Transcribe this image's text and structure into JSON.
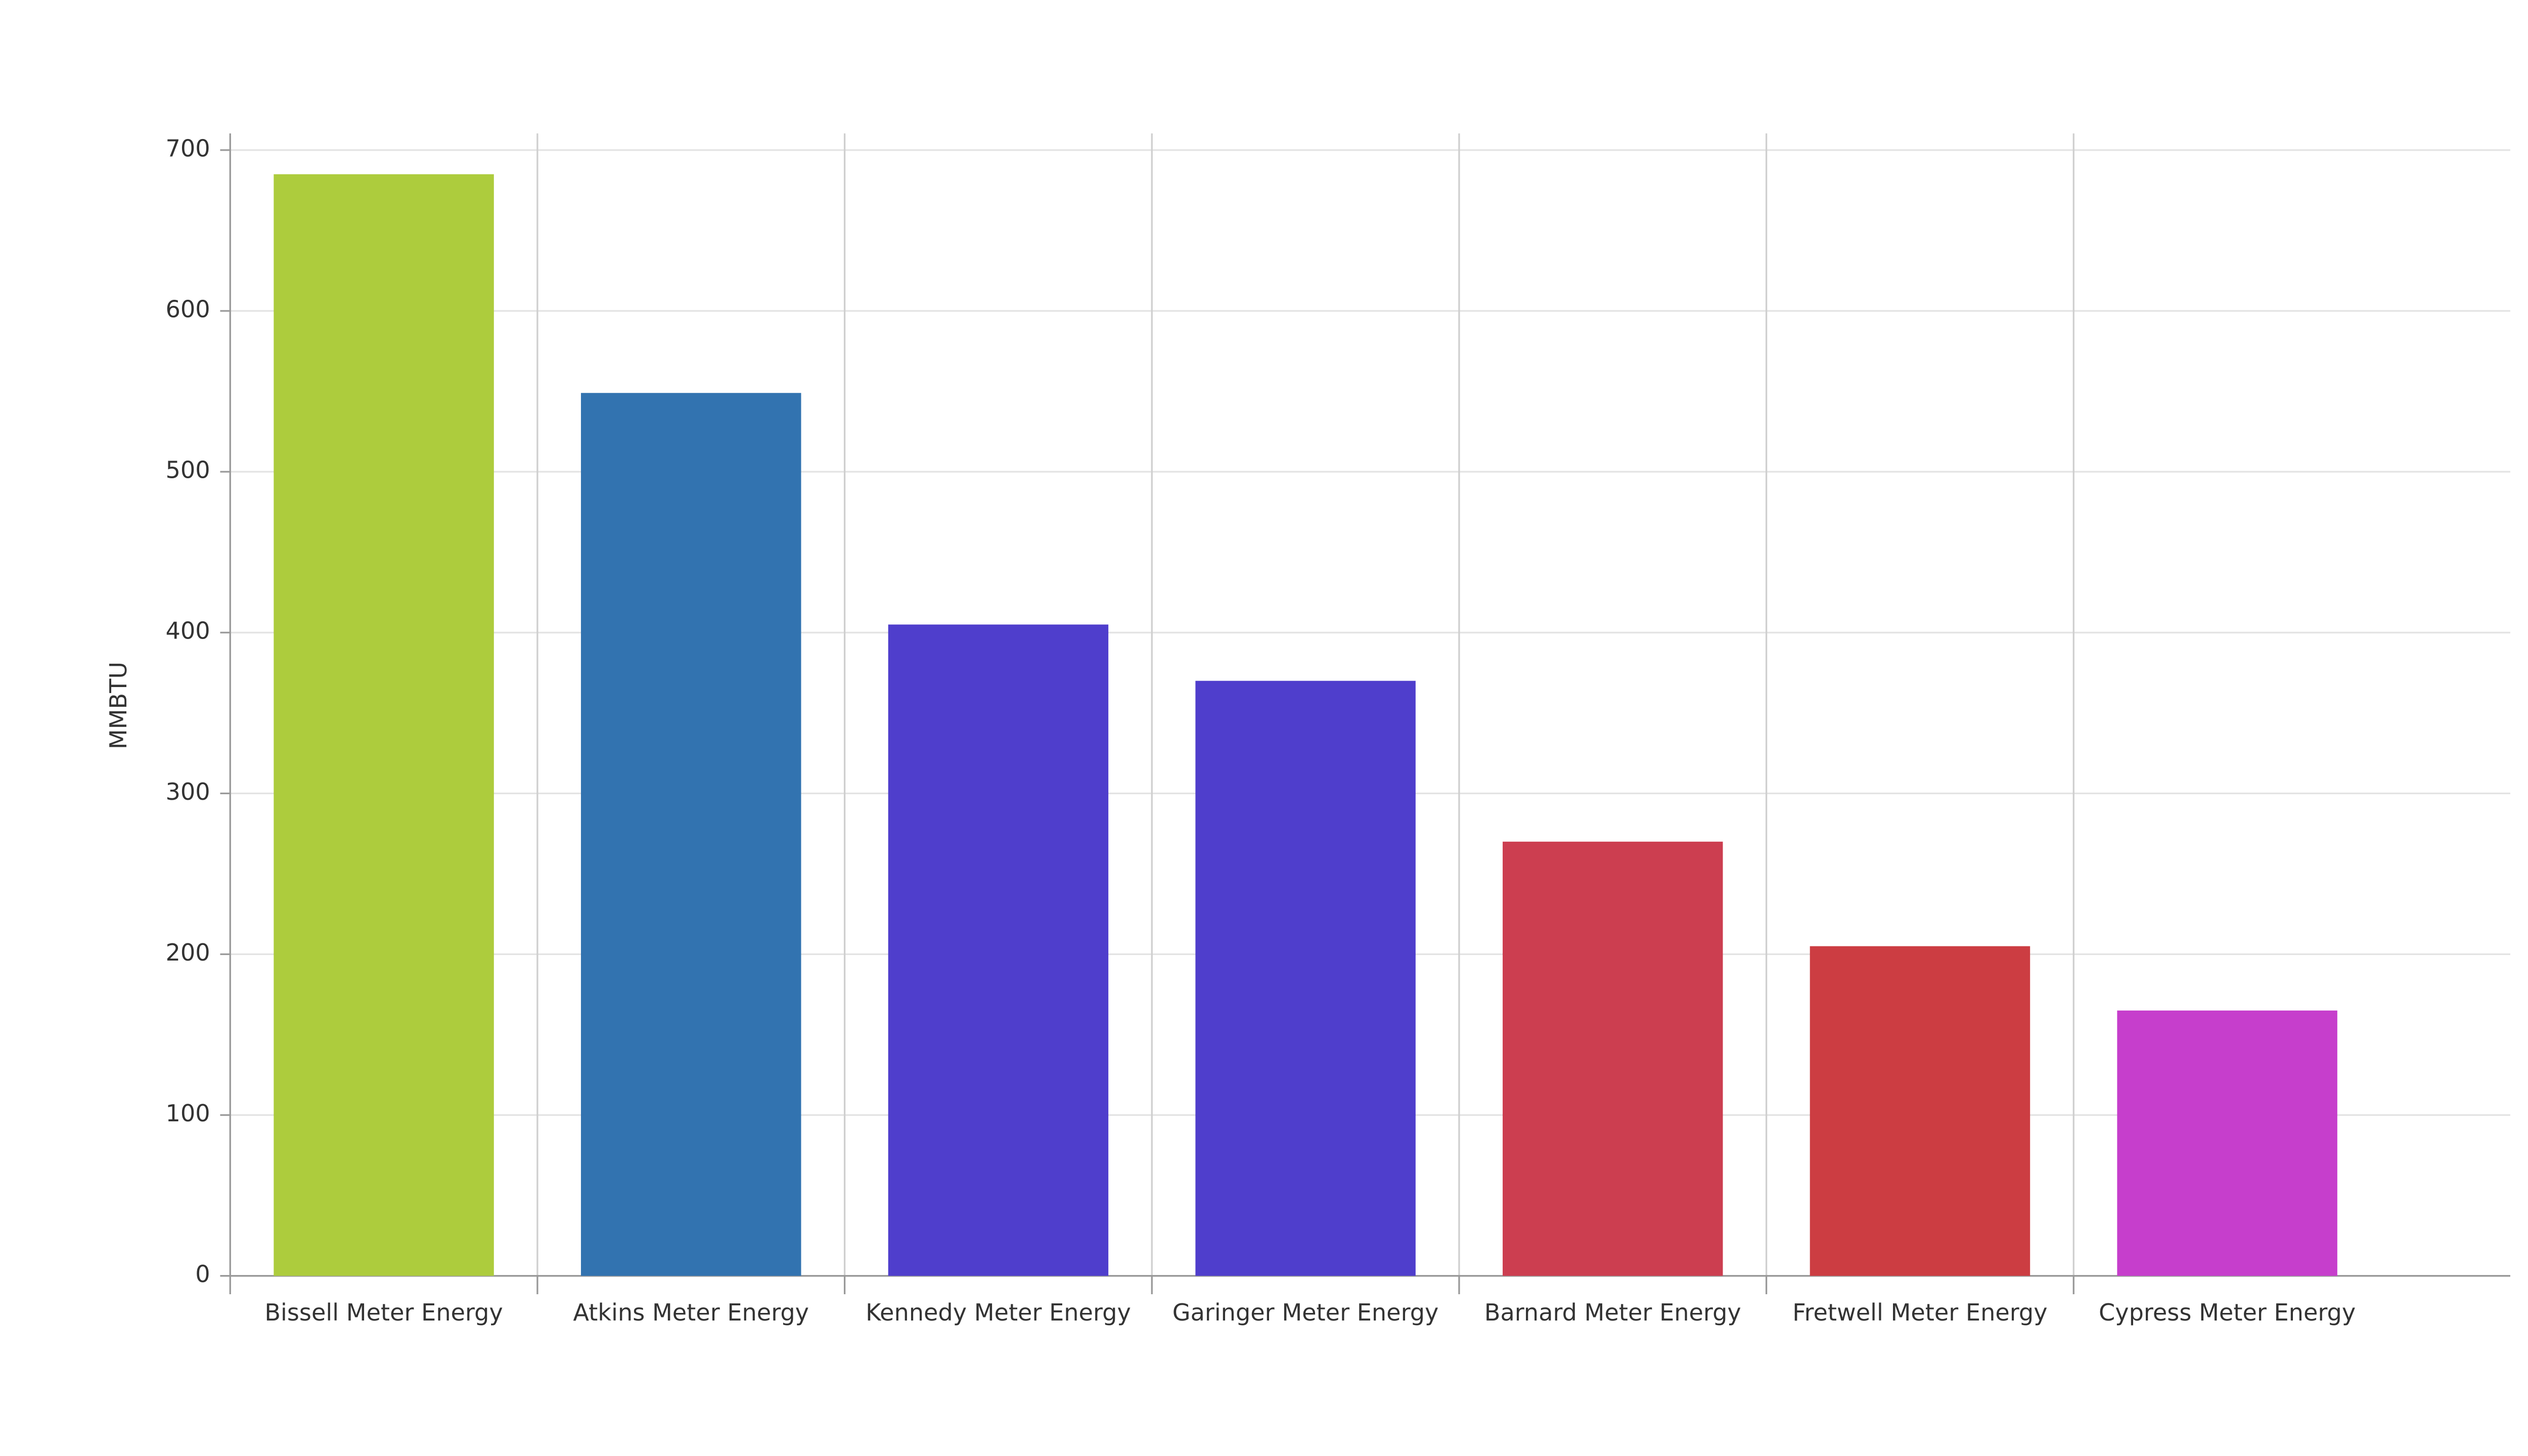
{
  "chart_data": {
    "type": "bar",
    "y_label": "MMBTU",
    "categories": [
      "Bissell Meter Energy",
      "Atkins Meter Energy",
      "Kennedy Meter Energy",
      "Garinger Meter Energy",
      "Barnard Meter Energy",
      "Fretwell Meter Energy",
      "Cypress Meter Energy"
    ],
    "values": [
      685,
      549,
      405,
      370,
      270,
      205,
      165
    ],
    "colors": [
      "#adcc3d",
      "#3273b0",
      "#4f3ecc",
      "#4f3ecc",
      "#cc3e50",
      "#cc3d42",
      "#c63ecc"
    ],
    "ylim": [
      0,
      700
    ],
    "yticks": [
      0,
      100,
      200,
      300,
      400,
      500,
      600,
      700
    ],
    "grid": true
  }
}
